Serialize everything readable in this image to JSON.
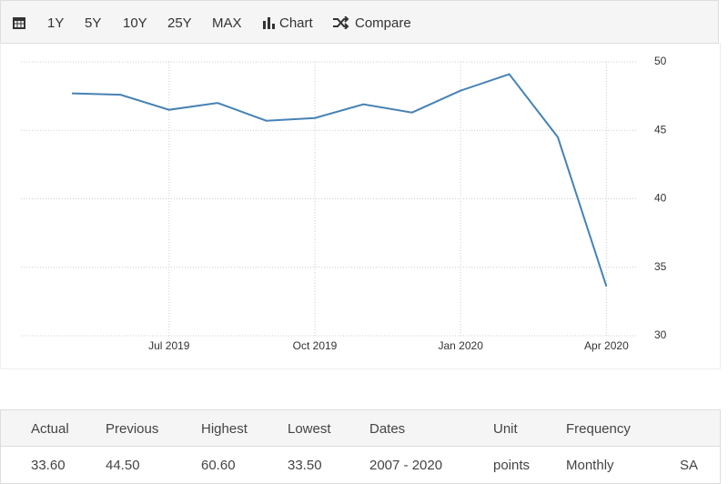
{
  "toolbar": {
    "buttons": [
      "1Y",
      "5Y",
      "10Y",
      "25Y",
      "MAX",
      "Chart",
      "Compare"
    ]
  },
  "chart_data": {
    "type": "line",
    "categories": [
      null,
      null,
      "Jul 2019",
      null,
      null,
      "Oct 2019",
      null,
      null,
      "Jan 2020",
      null,
      null,
      "Apr 2020"
    ],
    "series": [
      {
        "color": "#4682b4",
        "values": [
          47.7,
          47.6,
          46.5,
          47.0,
          45.7,
          45.9,
          46.9,
          46.3,
          47.9,
          49.1,
          44.5,
          33.6
        ]
      }
    ],
    "ylim": [
      30,
      50
    ],
    "yticks": [
      30,
      35,
      40,
      45,
      50
    ],
    "grid": true
  },
  "table": {
    "headers": [
      "Actual",
      "Previous",
      "Highest",
      "Lowest",
      "Dates",
      "Unit",
      "Frequency"
    ],
    "rows": [
      [
        "33.60",
        "44.50",
        "60.60",
        "33.50",
        "2007 - 2020",
        "points",
        "Monthly",
        "SA"
      ]
    ]
  }
}
